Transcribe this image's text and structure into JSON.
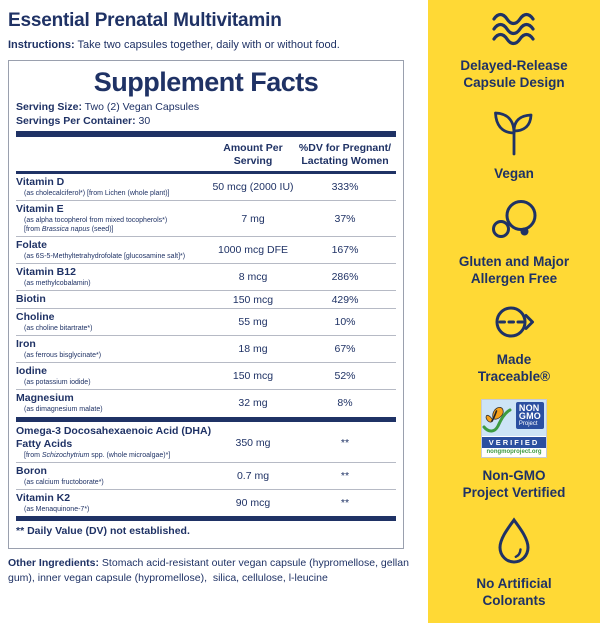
{
  "colors": {
    "navy": "#1f3265",
    "yellow": "#FFD935",
    "separator": "#b6bac5",
    "gmo_blue": "#2b4fa0",
    "gmo_green": "#3d9b41",
    "butterfly_orange": "#f5a01c"
  },
  "header": {
    "title": "Essential Prenatal Multivitamin",
    "instructions_label": "Instructions:",
    "instructions": " Take two capsules together, daily with or without food."
  },
  "supplement_facts": {
    "title": "Supplement Facts",
    "serving_size_label": "Serving Size:",
    "serving_size": " Two (2) Vegan Capsules",
    "servings_label": "Servings Per Container:",
    "servings": " 30",
    "col_amount": "Amount Per\nServing",
    "col_dv": "%DV for Pregnant/\nLactating Women",
    "rows": [
      {
        "sep": "none",
        "name_lines": [
          "Vitamin D"
        ],
        "sub_lines": [
          [
            {
              "t": "(as cholecalciferol*) [from Lichen (whole plant)]"
            }
          ]
        ],
        "amount": "50 mcg (2000 IU)",
        "dv": "333%"
      },
      {
        "sep": "thin",
        "name_lines": [
          "Vitamin E"
        ],
        "sub_lines": [
          [
            {
              "t": "(as alpha tocopherol from mixed tocopherols*)"
            }
          ],
          [
            {
              "t": "[from "
            },
            {
              "t": "Brassica napus",
              "i": 1
            },
            {
              "t": " (seed)]"
            }
          ]
        ],
        "amount": "7 mg",
        "dv": "37%"
      },
      {
        "sep": "thin",
        "name_lines": [
          "Folate"
        ],
        "sub_lines": [
          [
            {
              "t": "(as 6S-5-Methyltetrahydrofolate [glucosamine salt]*)"
            }
          ]
        ],
        "amount": "1000 mcg DFE",
        "dv": "167%"
      },
      {
        "sep": "thin",
        "name_lines": [
          "Vitamin B12"
        ],
        "sub_lines": [
          [
            {
              "t": "(as methylcobalamin)"
            }
          ]
        ],
        "amount": "8 mcg",
        "dv": "286%"
      },
      {
        "sep": "thin",
        "name_lines": [
          "Biotin"
        ],
        "sub_lines": [],
        "amount": "150 mcg",
        "dv": "429%"
      },
      {
        "sep": "thin",
        "name_lines": [
          "Choline"
        ],
        "sub_lines": [
          [
            {
              "t": "(as choline bitartrate*)"
            }
          ]
        ],
        "amount": "55 mg",
        "dv": "10%"
      },
      {
        "sep": "thin",
        "name_lines": [
          "Iron"
        ],
        "sub_lines": [
          [
            {
              "t": "(as ferrous bisglycinate*)"
            }
          ]
        ],
        "amount": "18 mg",
        "dv": "67%"
      },
      {
        "sep": "thin",
        "name_lines": [
          "Iodine"
        ],
        "sub_lines": [
          [
            {
              "t": "(as potassium iodide)"
            }
          ]
        ],
        "amount": "150 mcg",
        "dv": "52%"
      },
      {
        "sep": "thin",
        "name_lines": [
          "Magnesium"
        ],
        "sub_lines": [
          [
            {
              "t": "(as dimagnesium malate)"
            }
          ]
        ],
        "amount": "32 mg",
        "dv": "8%"
      },
      {
        "sep": "thick",
        "name_lines": [
          "Omega-3 Docosahexaenoic Acid (DHA)",
          "Fatty Acids"
        ],
        "sub_lines": [
          [
            {
              "t": "[from "
            },
            {
              "t": "Schizochytrium",
              "i": 1
            },
            {
              "t": " spp. (whole microalgae)*]"
            }
          ]
        ],
        "amount": "350 mg",
        "dv": "**"
      },
      {
        "sep": "thin",
        "name_lines": [
          "Boron"
        ],
        "sub_lines": [
          [
            {
              "t": "(as calcium fructoborate*)"
            }
          ]
        ],
        "amount": "0.7 mg",
        "dv": "**"
      },
      {
        "sep": "thin",
        "name_lines": [
          "Vitamin K2"
        ],
        "sub_lines": [
          [
            {
              "t": "(as Menaquinone-7*)"
            }
          ]
        ],
        "amount": "90 mcg",
        "dv": "**"
      }
    ],
    "footnote": "** Daily Value (DV) not established."
  },
  "other_ingredients": {
    "label": "Other Ingredients:",
    "text": " Stomach acid-resistant outer vegan capsule (hypromellose, gellan gum), inner vegan capsule (hypromellose),  silica, cellulose, l-leucine"
  },
  "sidebar": {
    "features": [
      {
        "id": "delayed-release",
        "label": "Delayed-Release\nCapsule Design"
      },
      {
        "id": "vegan",
        "label": "Vegan"
      },
      {
        "id": "allergen-free",
        "label": "Gluten and Major\nAllergen Free"
      },
      {
        "id": "made-traceable",
        "label": "Made\nTraceable®"
      },
      {
        "id": "non-gmo",
        "label": "Non-GMO\nProject Vertified"
      },
      {
        "id": "no-artificial-colorants",
        "label": "No Artificial\nColorants"
      }
    ],
    "non_gmo_logo": {
      "non": "NON",
      "gmo": "GMO",
      "project": "Project",
      "verified": "VERIFIED",
      "url": "nongmoproject.org"
    }
  }
}
